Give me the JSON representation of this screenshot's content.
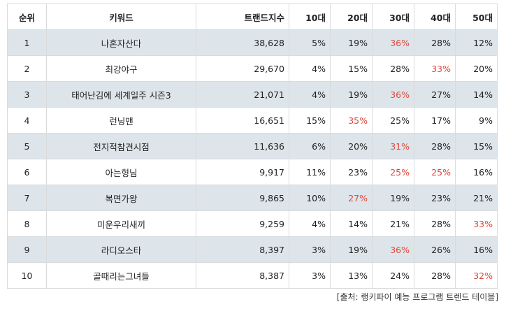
{
  "headers": [
    "순위",
    "키워드",
    "트랜드지수",
    "10대",
    "20대",
    "30대",
    "40대",
    "50대"
  ],
  "rows": [
    {
      "rank": "1",
      "keyword": "나혼자산다",
      "index": "38,628",
      "ages": [
        "5%",
        "19%",
        "36%",
        "28%",
        "12%"
      ],
      "hot": [
        false,
        false,
        true,
        false,
        false
      ]
    },
    {
      "rank": "2",
      "keyword": "최강야구",
      "index": "29,670",
      "ages": [
        "4%",
        "15%",
        "28%",
        "33%",
        "20%"
      ],
      "hot": [
        false,
        false,
        false,
        true,
        false
      ]
    },
    {
      "rank": "3",
      "keyword": "태어난김에 세계일주 시즌3",
      "index": "21,071",
      "ages": [
        "4%",
        "19%",
        "36%",
        "27%",
        "14%"
      ],
      "hot": [
        false,
        false,
        true,
        false,
        false
      ]
    },
    {
      "rank": "4",
      "keyword": "런닝맨",
      "index": "16,651",
      "ages": [
        "15%",
        "35%",
        "25%",
        "17%",
        "9%"
      ],
      "hot": [
        false,
        true,
        false,
        false,
        false
      ]
    },
    {
      "rank": "5",
      "keyword": "전지적참견시점",
      "index": "11,636",
      "ages": [
        "6%",
        "20%",
        "31%",
        "28%",
        "15%"
      ],
      "hot": [
        false,
        false,
        true,
        false,
        false
      ]
    },
    {
      "rank": "6",
      "keyword": "아는형님",
      "index": "9,917",
      "ages": [
        "11%",
        "23%",
        "25%",
        "25%",
        "16%"
      ],
      "hot": [
        false,
        false,
        true,
        true,
        false
      ]
    },
    {
      "rank": "7",
      "keyword": "복면가왕",
      "index": "9,865",
      "ages": [
        "10%",
        "27%",
        "19%",
        "23%",
        "21%"
      ],
      "hot": [
        false,
        true,
        false,
        false,
        false
      ]
    },
    {
      "rank": "8",
      "keyword": "미운우리새끼",
      "index": "9,259",
      "ages": [
        "4%",
        "14%",
        "21%",
        "28%",
        "33%"
      ],
      "hot": [
        false,
        false,
        false,
        false,
        true
      ]
    },
    {
      "rank": "9",
      "keyword": "라디오스타",
      "index": "8,397",
      "ages": [
        "3%",
        "19%",
        "36%",
        "26%",
        "16%"
      ],
      "hot": [
        false,
        false,
        true,
        false,
        false
      ]
    },
    {
      "rank": "10",
      "keyword": "골때리는그녀들",
      "index": "8,387",
      "ages": [
        "3%",
        "13%",
        "24%",
        "28%",
        "32%"
      ],
      "hot": [
        false,
        false,
        false,
        false,
        true
      ]
    }
  ],
  "source": "[출처: 랭키파이 예능 프로그램 트렌드 테이블]",
  "colors": {
    "row_shade": "#dde5ea",
    "highlight": "#e0483c",
    "border": "#dadada"
  }
}
